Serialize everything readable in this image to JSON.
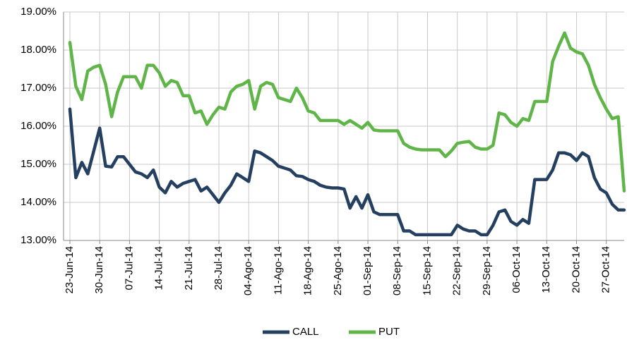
{
  "chart_data": {
    "type": "line",
    "categories": [
      "23-Jun-14",
      null,
      null,
      null,
      null,
      "30-Jun-14",
      null,
      null,
      null,
      null,
      "07-Jul-14",
      null,
      null,
      null,
      null,
      "14-Jul-14",
      null,
      null,
      null,
      null,
      "21-Jul-14",
      null,
      null,
      null,
      null,
      "28-Jul-14",
      null,
      null,
      null,
      null,
      "04-Ago-14",
      null,
      null,
      null,
      null,
      "11-Ago-14",
      null,
      null,
      null,
      null,
      "18-Ago-14",
      null,
      null,
      null,
      null,
      "25-Ago-14",
      null,
      null,
      null,
      null,
      "01-Sep-14",
      null,
      null,
      null,
      null,
      "08-Sep-14",
      null,
      null,
      null,
      null,
      "15-Sep-14",
      null,
      null,
      null,
      null,
      "22-Sep-14",
      null,
      null,
      null,
      null,
      "29-Sep-14",
      null,
      null,
      null,
      null,
      "06-Oct-14",
      null,
      null,
      null,
      null,
      "13-Oct-14",
      null,
      null,
      null,
      null,
      "20-Oct-14",
      null,
      null,
      null,
      null,
      "27-Oct-14",
      null,
      null,
      null
    ],
    "series": [
      {
        "name": "CALL",
        "color": "#243f60",
        "values": [
          16.45,
          14.65,
          15.05,
          14.75,
          15.35,
          15.95,
          14.95,
          14.93,
          15.2,
          15.2,
          15.0,
          14.8,
          14.75,
          14.65,
          14.85,
          14.4,
          14.25,
          14.55,
          14.4,
          14.5,
          14.55,
          14.6,
          14.3,
          14.4,
          14.2,
          14.0,
          14.25,
          14.45,
          14.75,
          14.65,
          14.55,
          15.35,
          15.3,
          15.2,
          15.1,
          14.95,
          14.9,
          14.85,
          14.7,
          14.68,
          14.6,
          14.55,
          14.45,
          14.4,
          14.38,
          14.38,
          14.35,
          13.85,
          14.15,
          13.85,
          14.2,
          13.75,
          13.68,
          13.68,
          13.68,
          13.68,
          13.25,
          13.25,
          13.15,
          13.15,
          13.15,
          13.15,
          13.15,
          13.15,
          13.15,
          13.4,
          13.3,
          13.25,
          13.25,
          13.15,
          13.15,
          13.4,
          13.75,
          13.8,
          13.5,
          13.4,
          13.55,
          13.45,
          14.6,
          14.6,
          14.6,
          14.85,
          15.3,
          15.3,
          15.25,
          15.1,
          15.3,
          15.2,
          14.65,
          14.35,
          14.25,
          13.95,
          13.8,
          13.8
        ]
      },
      {
        "name": "PUT",
        "color": "#5fb548",
        "values": [
          18.2,
          17.05,
          16.7,
          17.45,
          17.55,
          17.6,
          17.1,
          16.25,
          16.9,
          17.3,
          17.3,
          17.3,
          17.0,
          17.6,
          17.6,
          17.4,
          17.05,
          17.2,
          17.15,
          16.8,
          16.8,
          16.35,
          16.4,
          16.05,
          16.3,
          16.5,
          16.45,
          16.9,
          17.05,
          17.1,
          17.2,
          16.45,
          17.05,
          17.15,
          17.1,
          16.75,
          16.7,
          16.65,
          17.0,
          16.75,
          16.4,
          16.35,
          16.15,
          16.15,
          16.15,
          16.15,
          16.05,
          16.15,
          16.05,
          15.95,
          16.1,
          15.9,
          15.88,
          15.88,
          15.88,
          15.88,
          15.55,
          15.45,
          15.4,
          15.38,
          15.38,
          15.38,
          15.38,
          15.2,
          15.35,
          15.55,
          15.58,
          15.6,
          15.45,
          15.4,
          15.4,
          15.5,
          16.35,
          16.3,
          16.1,
          16.0,
          16.2,
          16.15,
          16.65,
          16.65,
          16.65,
          17.7,
          18.1,
          18.45,
          18.05,
          17.95,
          17.9,
          17.6,
          17.1,
          16.75,
          16.45,
          16.2,
          16.25,
          14.3
        ]
      }
    ],
    "ylim": [
      13,
      19
    ],
    "yticks": [
      {
        "value": 13,
        "label": "13.00%"
      },
      {
        "value": 14,
        "label": "14.00%"
      },
      {
        "value": 15,
        "label": "15.00%"
      },
      {
        "value": 16,
        "label": "16.00%"
      },
      {
        "value": 17,
        "label": "17.00%"
      },
      {
        "value": 18,
        "label": "18.00%"
      },
      {
        "value": 19,
        "label": "19.00%"
      }
    ],
    "grid": true,
    "legend": "bottom"
  }
}
